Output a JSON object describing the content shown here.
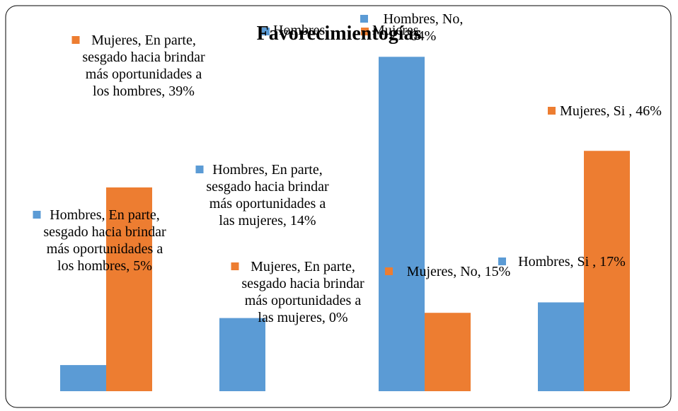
{
  "chart_data": {
    "type": "bar",
    "title": "Favorecimientogías",
    "categories": [
      null,
      null,
      null,
      null
    ],
    "series": [
      {
        "name": "Hombres",
        "color": "#5b9bd5",
        "values": [
          5,
          14,
          64,
          17
        ],
        "value_labels": [
          "Hombres, En parte, sesgado hacia brindar más oportunidades a los hombres, 5%",
          "Hombres, En parte, sesgado hacia brindar más oportunidades a las mujeres, 14%",
          "Hombres, No, 64%",
          "Hombres, Si , 17%"
        ]
      },
      {
        "name": "Mujeres",
        "color": "#ed7d31",
        "values": [
          39,
          0,
          15,
          46
        ],
        "value_labels": [
          "Mujeres, En parte, sesgado hacia brindar más oportunidades a los hombres, 39%",
          "Mujeres, En parte, sesgado hacia brindar más oportunidades a las mujeres, 0%",
          "Mujeres, No, 15%",
          "Mujeres, Si , 46%"
        ]
      }
    ],
    "ylim": [
      0,
      70
    ],
    "legend": "top"
  }
}
